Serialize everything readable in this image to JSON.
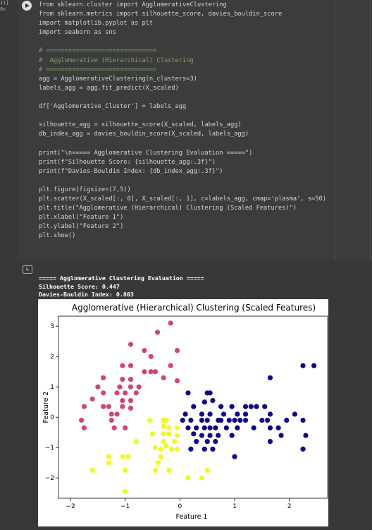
{
  "cell": {
    "gutter": [
      "11]",
      "0s"
    ],
    "code": [
      [
        "from sklearn.cluster import AgglomerativeClustering",
        "from sklearn.metrics import silhouette_score, davies_bouldin_score",
        "import matplotlib.pyplot as plt",
        "import seaborn as sns"
      ],
      [
        "# ==============================",
        "#  Agglomerative (Hierarchical) Clustering",
        "# ==============================",
        "agg = AgglomerativeClustering(n_clusters=3)",
        "labels_agg = agg.fit_predict(X_scaled)"
      ],
      [
        "df['Agglomerative_Cluster'] = labels_agg"
      ],
      [
        "silhouette_agg = silhouette_score(X_scaled, labels_agg)",
        "db_index_agg = davies_bouldin_score(X_scaled, labels_agg)"
      ],
      [
        "print(\"\\n===== Agglomerative Clustering Evaluation =====\")",
        "print(f\"Silhouette Score: {silhouette_agg:.3f}\")",
        "print(f\"Davies-Bouldin Index: {db_index_agg:.3f}\")"
      ],
      [
        "plt.figure(figsize=(7,5))",
        "plt.scatter(X_scaled[:, 0], X_scaled[:, 1], c=labels_agg, cmap='plasma', s=50)",
        "plt.title(\"Agglomerative (Hierarchical) Clustering (Scaled Features)\")",
        "plt.xlabel(\"Feature 1\")",
        "plt.ylabel(\"Feature 2\")",
        "plt.show()"
      ]
    ],
    "output": [
      "===== Agglomerative Clustering Evaluation =====",
      "Silhouette Score: 0.447",
      "Davies-Bouldin Index: 0.803"
    ]
  },
  "chart_data": {
    "type": "scatter",
    "title": "Agglomerative (Hierarchical) Clustering (Scaled Features)",
    "x_label": "Feature 1",
    "y_label": "Feature 2",
    "xlim": [
      -2.22,
      2.7
    ],
    "ylim": [
      -2.67,
      3.33
    ],
    "xticks": [
      {
        "value": -2,
        "label": "−2"
      },
      {
        "value": -1,
        "label": "−1"
      },
      0,
      1,
      2
    ],
    "yticks": [
      {
        "value": -2,
        "label": "−2"
      },
      {
        "value": -1,
        "label": "−1"
      },
      0,
      1,
      2,
      3
    ],
    "series": [
      {
        "color": "#cc4778",
        "x": [
          -0.17,
          -0.41,
          -0.9,
          -0.05,
          -0.65,
          -0.53,
          -1.05,
          -0.9,
          -0.65,
          -0.53,
          -1.4,
          -1.05,
          -0.9,
          -0.17,
          -0.3,
          -0.05,
          -1.1,
          -0.9,
          -1.4,
          -1.15,
          -1.0,
          -0.8,
          -1.05,
          -0.9,
          -1.05,
          -0.9,
          -1.4,
          -1.3,
          -1.75,
          -1.25,
          -1.15,
          -1.25,
          -1.8,
          -1.75,
          -1.2,
          -1.0,
          -1.6,
          -1.5,
          -0.75,
          -0.45
        ],
        "values": [
          3.1,
          2.8,
          2.4,
          2.2,
          2.2,
          2.0,
          1.7,
          1.7,
          1.5,
          1.5,
          1.3,
          1.25,
          1.25,
          1.7,
          1.3,
          1.2,
          1.0,
          1.0,
          0.8,
          0.8,
          0.8,
          0.8,
          0.55,
          0.55,
          0.35,
          0.3,
          0.35,
          0.35,
          0.35,
          0.1,
          0.1,
          -0.1,
          -0.1,
          -0.35,
          -0.35,
          -0.35,
          0.6,
          1.0,
          1.0,
          1.5
        ]
      },
      {
        "color": "#0d0887",
        "x": [
          0.15,
          0.5,
          0.55,
          0.45,
          0.6,
          0.25,
          0.75,
          0.95,
          1.2,
          1.3,
          1.4,
          0.1,
          0.4,
          0.55,
          0.8,
          1.05,
          1.2,
          1.65,
          1.55,
          0.05,
          0.2,
          0.4,
          0.5,
          0.7,
          0.75,
          0.9,
          1.0,
          1.1,
          1.2,
          1.5,
          1.6,
          1.95,
          2.25,
          0.15,
          0.3,
          0.45,
          0.55,
          0.65,
          0.85,
          1.05,
          1.35,
          1.65,
          1.8,
          2.3,
          0.25,
          0.4,
          0.55,
          0.7,
          0.95,
          1.85,
          0.3,
          0.5,
          0.65,
          0.45,
          0.6,
          0.2,
          1.65,
          2.25,
          1.0,
          1.65,
          2.25,
          2.45,
          2.1
        ],
        "values": [
          0.8,
          0.8,
          0.8,
          0.5,
          0.55,
          0.35,
          0.35,
          0.35,
          0.35,
          0.35,
          0.35,
          0.1,
          0.1,
          0.1,
          0.1,
          0.1,
          0.1,
          0.1,
          0.35,
          -0.1,
          -0.1,
          -0.1,
          -0.1,
          -0.1,
          -0.1,
          -0.1,
          -0.1,
          -0.1,
          -0.1,
          -0.1,
          -0.1,
          -0.1,
          -0.1,
          -0.35,
          -0.35,
          -0.35,
          -0.35,
          -0.35,
          -0.35,
          -0.35,
          -0.35,
          -0.35,
          -0.35,
          -0.6,
          -0.55,
          -0.6,
          -0.6,
          -0.6,
          -0.6,
          -0.6,
          -0.8,
          -0.8,
          -0.8,
          -1.05,
          -1.05,
          -1.05,
          -0.8,
          -1.05,
          -1.3,
          1.3,
          1.7,
          1.7,
          0.1
        ]
      },
      {
        "color": "#f0f921",
        "x": [
          -0.55,
          -0.3,
          -0.25,
          -0.3,
          -0.2,
          -0.5,
          -0.3,
          -0.2,
          -0.05,
          -0.3,
          -0.1,
          -0.8,
          -0.25,
          -0.45,
          -0.35,
          -0.15,
          -0.05,
          -1.3,
          -1.05,
          -0.95,
          -0.35,
          -0.4,
          -1.3,
          -0.45,
          -1.6,
          -1.0,
          -0.2,
          0.5,
          0.15,
          0.4,
          -1.0,
          -0.05
        ],
        "values": [
          -0.1,
          -0.1,
          -0.1,
          -0.3,
          -0.35,
          -0.55,
          -0.55,
          -0.55,
          -0.6,
          -0.8,
          -0.8,
          -0.8,
          -0.95,
          -1.0,
          -1.05,
          -1.05,
          -1.05,
          -1.3,
          -1.3,
          -1.3,
          -1.3,
          -1.5,
          -1.5,
          -1.75,
          -1.75,
          -1.75,
          -1.75,
          -1.75,
          -2.0,
          -2.0,
          -2.45,
          -0.35
        ]
      }
    ]
  }
}
